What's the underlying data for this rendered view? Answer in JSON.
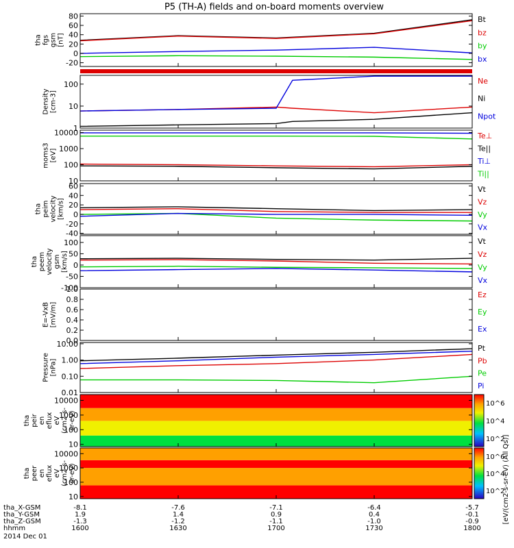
{
  "title": "P5 (TH-A) fields and on-board moments overview",
  "colors": {
    "black": "#000000",
    "red": "#dd0000",
    "green": "#00cc00",
    "blue": "#0000dd"
  },
  "colorbar_label": "[eV/(cm2-s-sr-eV) (All Qs)]",
  "colorbar_ticks": [
    "10^6",
    "10^4",
    "10^2",
    "10^6",
    "10^4",
    "10^2"
  ],
  "time_axis": {
    "rows": [
      {
        "label": "tha_X-GSM",
        "values": [
          "-8.1",
          "-7.6",
          "-7.1",
          "-6.4",
          "-5.7"
        ]
      },
      {
        "label": "tha_Y-GSM",
        "values": [
          "1.9",
          "1.4",
          "0.9",
          "0.4",
          "-0.1"
        ]
      },
      {
        "label": "tha_Z-GSM",
        "values": [
          "-1.3",
          "-1.2",
          "-1.1",
          "-1.0",
          "-0.9"
        ]
      },
      {
        "label": "hhmm",
        "values": [
          "1600",
          "1630",
          "1700",
          "1730",
          "1800"
        ]
      }
    ],
    "date": "2014 Dec 01"
  },
  "chart_data": [
    {
      "type": "line",
      "ylabel": [
        "tha",
        "fgs",
        "gsm",
        "[nT]"
      ],
      "yticks": [
        "80",
        "60",
        "40",
        "20",
        "0",
        "-20"
      ],
      "legend": [
        {
          "text": "Bt",
          "color": "#000000"
        },
        {
          "text": "bz",
          "color": "#dd0000"
        },
        {
          "text": "by",
          "color": "#00cc00"
        },
        {
          "text": "bx",
          "color": "#0000dd"
        }
      ],
      "ylim": [
        -28,
        85
      ],
      "x": [
        1600,
        1630,
        1700,
        1730,
        1800
      ],
      "series": [
        {
          "name": "Bt",
          "color": "#000000",
          "values": [
            28,
            38,
            33,
            43,
            72
          ]
        },
        {
          "name": "bz",
          "color": "#dd0000",
          "values": [
            27,
            37,
            32,
            42,
            70
          ]
        },
        {
          "name": "by",
          "color": "#00cc00",
          "values": [
            -7,
            -5,
            -6,
            -8,
            -13
          ]
        },
        {
          "name": "bx",
          "color": "#0000dd",
          "values": [
            0,
            4,
            7,
            13,
            1
          ]
        }
      ]
    },
    {
      "type": "line",
      "ylabel": [
        "Density",
        "[cm-3]"
      ],
      "yticks": [
        "100",
        "10",
        "1"
      ],
      "legend": [
        {
          "text": "Ne",
          "color": "#dd0000"
        },
        {
          "text": "Ni",
          "color": "#000000"
        },
        {
          "text": "Npot",
          "color": "#0000dd"
        }
      ],
      "scale": "log",
      "ylim": [
        1,
        250
      ],
      "x": [
        1600,
        1630,
        1700,
        1705,
        1730,
        1800
      ],
      "series": [
        {
          "name": "Ne",
          "color": "#dd0000",
          "values": [
            6,
            7,
            9,
            8,
            5,
            9
          ]
        },
        {
          "name": "Ni",
          "color": "#000000",
          "values": [
            1.2,
            1.4,
            1.6,
            2.0,
            2.5,
            5
          ]
        },
        {
          "name": "Npot",
          "color": "#0000dd",
          "values": [
            6,
            7,
            8,
            150,
            230,
            230
          ]
        }
      ]
    },
    {
      "type": "line",
      "ylabel": [
        "moms3",
        "[eV]"
      ],
      "yticks": [
        "10000",
        "1000",
        "100",
        "10"
      ],
      "legend": [
        {
          "text": "Te⊥",
          "color": "#dd0000"
        },
        {
          "text": "Te||",
          "color": "#000000"
        },
        {
          "text": "Ti⊥",
          "color": "#0000dd"
        },
        {
          "text": "Ti||",
          "color": "#00cc00"
        }
      ],
      "scale": "log",
      "ylim": [
        10,
        14000
      ],
      "x": [
        1600,
        1630,
        1700,
        1730,
        1800
      ],
      "series": [
        {
          "name": "Te⊥",
          "color": "#dd0000",
          "values": [
            110,
            100,
            85,
            75,
            100
          ]
        },
        {
          "name": "Te||",
          "color": "#000000",
          "values": [
            85,
            80,
            65,
            55,
            80
          ]
        },
        {
          "name": "Ti⊥",
          "color": "#0000dd",
          "values": [
            9500,
            9500,
            9500,
            9500,
            9000
          ]
        },
        {
          "name": "Ti||",
          "color": "#00cc00",
          "values": [
            6000,
            6000,
            6000,
            5800,
            4000
          ]
        }
      ]
    },
    {
      "type": "line",
      "ylabel": [
        "tha",
        "peim",
        "velocity",
        "[km/s]"
      ],
      "yticks": [
        "60",
        "40",
        "20",
        "0",
        "-20",
        "-40"
      ],
      "legend": [
        {
          "text": "Vt",
          "color": "#000000"
        },
        {
          "text": "Vz",
          "color": "#dd0000"
        },
        {
          "text": "Vy",
          "color": "#00cc00"
        },
        {
          "text": "Vx",
          "color": "#0000dd"
        }
      ],
      "ylim": [
        -42,
        65
      ],
      "x": [
        1600,
        1630,
        1700,
        1730,
        1800
      ],
      "series": [
        {
          "name": "Vt",
          "color": "#000000",
          "values": [
            14,
            16,
            12,
            8,
            10
          ]
        },
        {
          "name": "Vz",
          "color": "#dd0000",
          "values": [
            10,
            12,
            6,
            4,
            4
          ]
        },
        {
          "name": "Vy",
          "color": "#00cc00",
          "values": [
            0,
            2,
            -8,
            -12,
            -14
          ]
        },
        {
          "name": "Vx",
          "color": "#0000dd",
          "values": [
            -4,
            2,
            0,
            0,
            -2
          ]
        }
      ]
    },
    {
      "type": "line",
      "ylabel": [
        "tha",
        "peem",
        "velocity",
        "gsm",
        "[km/s]"
      ],
      "yticks": [
        "100",
        "50",
        "0",
        "-50",
        "-100"
      ],
      "legend": [
        {
          "text": "Vt",
          "color": "#000000"
        },
        {
          "text": "Vz",
          "color": "#dd0000"
        },
        {
          "text": "Vy",
          "color": "#00cc00"
        },
        {
          "text": "Vx",
          "color": "#0000dd"
        }
      ],
      "ylim": [
        -100,
        130
      ],
      "x": [
        1600,
        1630,
        1700,
        1730,
        1800
      ],
      "series": [
        {
          "name": "Vt",
          "color": "#000000",
          "values": [
            28,
            30,
            25,
            22,
            30
          ]
        },
        {
          "name": "Vz",
          "color": "#dd0000",
          "values": [
            22,
            24,
            18,
            8,
            5
          ]
        },
        {
          "name": "Vy",
          "color": "#00cc00",
          "values": [
            -8,
            -5,
            -10,
            -12,
            -15
          ]
        },
        {
          "name": "Vx",
          "color": "#0000dd",
          "values": [
            -25,
            -20,
            -15,
            -22,
            -30
          ]
        }
      ]
    },
    {
      "type": "line",
      "ylabel": [
        "E=-VxB",
        "[mV/m]"
      ],
      "yticks": [
        "1.0",
        "0.8",
        "0.6",
        "0.4",
        "0.2",
        "0.0"
      ],
      "legend": [
        {
          "text": "Ez",
          "color": "#dd0000"
        },
        {
          "text": "Ey",
          "color": "#00cc00"
        },
        {
          "text": "Ex",
          "color": "#0000dd"
        }
      ],
      "ylim": [
        0,
        1
      ],
      "x": [],
      "series": []
    },
    {
      "type": "line",
      "ylabel": [
        "Pressure",
        "[nPa]"
      ],
      "yticks": [
        "10.00",
        "1.00",
        "0.10",
        "0.01"
      ],
      "legend": [
        {
          "text": "Pt",
          "color": "#000000"
        },
        {
          "text": "Pb",
          "color": "#dd0000"
        },
        {
          "text": "Pe",
          "color": "#00cc00"
        },
        {
          "text": "Pi",
          "color": "#0000dd"
        }
      ],
      "scale": "log",
      "ylim": [
        0.01,
        12
      ],
      "x": [
        1600,
        1630,
        1700,
        1730,
        1800
      ],
      "series": [
        {
          "name": "Pt",
          "color": "#000000",
          "values": [
            0.9,
            1.3,
            2.0,
            3.0,
            5.0
          ]
        },
        {
          "name": "Pi",
          "color": "#0000dd",
          "values": [
            0.6,
            0.9,
            1.5,
            2.2,
            3.5
          ]
        },
        {
          "name": "Pb",
          "color": "#dd0000",
          "values": [
            0.3,
            0.45,
            0.6,
            1.0,
            2.2
          ]
        },
        {
          "name": "Pe",
          "color": "#00cc00",
          "values": [
            0.06,
            0.06,
            0.055,
            0.04,
            0.1
          ]
        }
      ]
    },
    {
      "type": "heatmap",
      "ylabel": [
        "tha",
        "peir",
        "en",
        "eflux",
        "eV",
        "(cm2-s-",
        "sr-eV)"
      ],
      "yticks": [
        "10000",
        "1000",
        "100",
        "10"
      ],
      "scale": "log",
      "ylim": [
        7,
        25000
      ],
      "x": [
        1600,
        1630,
        1700,
        1730,
        1800
      ],
      "bands": [
        {
          "from": 7,
          "to": 40,
          "level": 0.35
        },
        {
          "from": 40,
          "to": 400,
          "level": 0.55
        },
        {
          "from": 400,
          "to": 3000,
          "level": 0.8
        },
        {
          "from": 3000,
          "to": 25000,
          "level": 1.0
        }
      ]
    },
    {
      "type": "heatmap",
      "ylabel": [
        "tha",
        "peer",
        "en",
        "eflux",
        "eV",
        "(cm2-s-",
        "sr-eV)"
      ],
      "yticks": [
        "10000",
        "1000",
        "100",
        "10"
      ],
      "scale": "log",
      "ylim": [
        7,
        25000
      ],
      "x": [
        1600,
        1630,
        1700,
        1730,
        1800
      ],
      "bands": [
        {
          "from": 7,
          "to": 60,
          "level": 0.9
        },
        {
          "from": 60,
          "to": 1000,
          "level": 0.75
        },
        {
          "from": 1000,
          "to": 3500,
          "level": 0.92
        },
        {
          "from": 3500,
          "to": 25000,
          "level": 0.7
        }
      ]
    }
  ]
}
